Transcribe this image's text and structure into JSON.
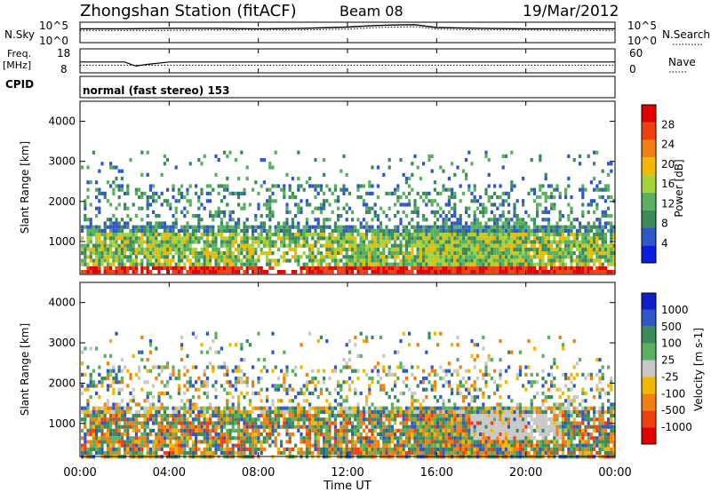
{
  "header": {
    "station": "Zhongshan Station (fitACF)",
    "beam": "Beam 08",
    "date": "19/Mar/2012"
  },
  "panel_labels": {
    "nsky": "N.Sky",
    "freq": "Freq.",
    "freq_unit": "[MHz]",
    "cpid": "CPID",
    "nsearch": "N.Search",
    "nave": "Nave",
    "mode": "normal (fast stereo) 153"
  },
  "colors": {
    "power_scale": [
      "#0a1de0",
      "#2f57c8",
      "#3a8a5a",
      "#58b060",
      "#a3d23a",
      "#f0b800",
      "#f08010",
      "#f04010",
      "#e00000"
    ],
    "velocity_scale": [
      "#e00000",
      "#f04010",
      "#f08010",
      "#f0b800",
      "#c8c8c8",
      "#58b060",
      "#3a8a5a",
      "#2f57c8",
      "#1020c8"
    ],
    "ground_scatter": "#c8c8c8"
  },
  "chart_data": [
    {
      "type": "line",
      "title": "N.Sky / N.Search",
      "y_tick_labels": [
        "10^0",
        "10^5"
      ],
      "y_tick_labels_right": [
        "10^0",
        "10^5"
      ],
      "ylim": [
        0,
        5
      ],
      "x": [
        "00:00",
        "02:00",
        "04:00",
        "06:00",
        "08:00",
        "10:00",
        "12:00",
        "13:00",
        "14:00",
        "15:00",
        "16:00",
        "18:00",
        "20:00",
        "22:00",
        "24:00"
      ],
      "series": [
        {
          "name": "N.Sky",
          "values": [
            3.4,
            3.4,
            3.5,
            3.5,
            3.4,
            3.5,
            3.8,
            4.1,
            4.3,
            4.4,
            3.7,
            3.5,
            3.4,
            3.4,
            3.4
          ]
        },
        {
          "name": "N.Search",
          "values": [
            3.0,
            3.0,
            3.0,
            3.1,
            3.1,
            3.1,
            3.3,
            3.6,
            3.8,
            3.9,
            3.3,
            3.1,
            3.1,
            3.0,
            3.0
          ]
        }
      ]
    },
    {
      "type": "line",
      "title": "Freq. / Nave",
      "y_tick_labels": [
        "8",
        "18"
      ],
      "y_tick_labels_right": [
        "0",
        "60"
      ],
      "ylim": [
        8,
        18
      ],
      "x": [
        "00:00",
        "02:00",
        "02:30",
        "03:00",
        "04:00",
        "08:00",
        "12:00",
        "16:00",
        "20:00",
        "24:00"
      ],
      "series": [
        {
          "name": "Freq.",
          "values": [
            12.5,
            12.5,
            10.8,
            11.5,
            12.5,
            12.5,
            12.5,
            12.5,
            12.5,
            12.5
          ]
        },
        {
          "name": "Nave",
          "values": [
            11.2,
            11.2,
            11.2,
            11.2,
            11.2,
            11.2,
            11.2,
            11.2,
            11.2,
            11.2
          ]
        }
      ]
    },
    {
      "type": "heatmap",
      "title": "Power [dB]",
      "ylabel": "Slant Range [km]",
      "y_tick_labels": [
        "1000",
        "2000",
        "3000",
        "4000"
      ],
      "ylim": [
        180,
        4500
      ],
      "colorbar_label": "Power [dB]",
      "colorbar_ticks": [
        "4",
        "8",
        "12",
        "16",
        "20",
        "24",
        "28"
      ],
      "colorbar_range": [
        0,
        30
      ]
    },
    {
      "type": "heatmap",
      "title": "Velocity [m s-1]",
      "ylabel": "Slant Range [km]",
      "y_tick_labels": [
        "1000",
        "2000",
        "3000",
        "4000"
      ],
      "ylim": [
        180,
        4500
      ],
      "colorbar_label": "Velocity [m s-1]",
      "colorbar_ticks": [
        "-1000",
        "-500",
        "-100",
        "-25",
        "25",
        "100",
        "500",
        "1000"
      ],
      "xlabel": "Time UT",
      "x_tick_labels": [
        "00:00",
        "04:00",
        "08:00",
        "12:00",
        "16:00",
        "20:00",
        "00:00"
      ]
    }
  ]
}
